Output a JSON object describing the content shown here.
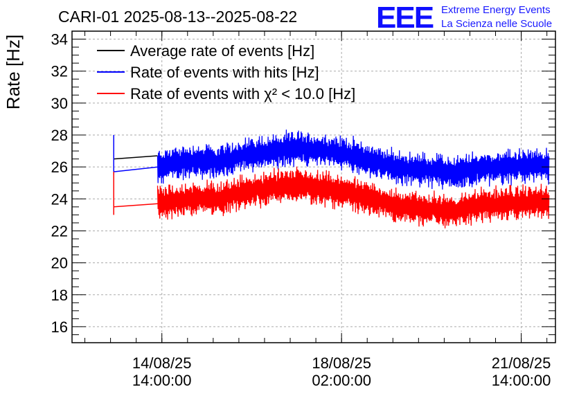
{
  "header": {
    "title": "CARI-01 2025-08-13--2025-08-22",
    "logo_text": "EEE",
    "logo_line1": "Extreme Energy Events",
    "logo_line2": "La Scienza nelle Scuole"
  },
  "chart_data": {
    "type": "line",
    "title": "CARI-01 2025-08-13--2025-08-22",
    "xlabel": "",
    "ylabel": "Rate [Hz]",
    "x_axis": "date",
    "xlim": [
      "2025-08-12T20:00:00",
      "2025-08-22T06:00:00"
    ],
    "ylim": [
      15,
      34.5
    ],
    "grid": true,
    "legend_position": "top-left",
    "x_ticks": [
      {
        "at": "2025-08-14T14:00:00",
        "date": "14/08/25",
        "time": "14:00:00"
      },
      {
        "at": "2025-08-18T02:00:00",
        "date": "18/08/25",
        "time": "02:00:00"
      },
      {
        "at": "2025-08-21T14:00:00",
        "date": "21/08/25",
        "time": "14:00:00"
      }
    ],
    "y_ticks": [
      16,
      18,
      20,
      22,
      24,
      26,
      28,
      30,
      32,
      34
    ],
    "series": [
      {
        "name": "Average rate of events [Hz]",
        "color": "#000000",
        "points": [
          [
            "2025-08-13T15:30:00",
            26.5
          ],
          [
            "2025-08-14T12:00:00",
            26.7
          ]
        ]
      },
      {
        "name": "Rate of events with hits [Hz]",
        "color": "#0000ff",
        "spike": [
          [
            "2025-08-13T15:30:00",
            25.5
          ],
          [
            "2025-08-13T15:30:00",
            28.0
          ]
        ],
        "points": [
          [
            "2025-08-13T15:30:00",
            25.7
          ],
          [
            "2025-08-14T12:00:00",
            26.0
          ],
          [
            "2025-08-14T18:00:00",
            26.2
          ],
          [
            "2025-08-15T06:00:00",
            26.4
          ],
          [
            "2025-08-15T18:00:00",
            26.3
          ],
          [
            "2025-08-16T06:00:00",
            26.8
          ],
          [
            "2025-08-16T18:00:00",
            27.0
          ],
          [
            "2025-08-17T06:00:00",
            27.2
          ],
          [
            "2025-08-17T18:00:00",
            27.0
          ],
          [
            "2025-08-18T06:00:00",
            26.8
          ],
          [
            "2025-08-18T18:00:00",
            26.3
          ],
          [
            "2025-08-19T06:00:00",
            25.9
          ],
          [
            "2025-08-19T18:00:00",
            25.8
          ],
          [
            "2025-08-20T06:00:00",
            25.6
          ],
          [
            "2025-08-20T18:00:00",
            25.9
          ],
          [
            "2025-08-21T06:00:00",
            26.0
          ],
          [
            "2025-08-21T18:00:00",
            26.1
          ],
          [
            "2025-08-22T03:00:00",
            26.0
          ]
        ]
      },
      {
        "name": "Rate of events with χ² < 10.0 [Hz]",
        "color": "#ff0000",
        "spike": [
          [
            "2025-08-13T15:30:00",
            23.0
          ],
          [
            "2025-08-13T15:30:00",
            25.7
          ]
        ],
        "points": [
          [
            "2025-08-13T15:30:00",
            23.5
          ],
          [
            "2025-08-14T12:00:00",
            23.7
          ],
          [
            "2025-08-14T18:00:00",
            23.8
          ],
          [
            "2025-08-15T06:00:00",
            24.1
          ],
          [
            "2025-08-15T18:00:00",
            24.0
          ],
          [
            "2025-08-16T06:00:00",
            24.5
          ],
          [
            "2025-08-16T18:00:00",
            24.7
          ],
          [
            "2025-08-17T06:00:00",
            24.9
          ],
          [
            "2025-08-17T18:00:00",
            24.6
          ],
          [
            "2025-08-18T06:00:00",
            24.4
          ],
          [
            "2025-08-18T18:00:00",
            23.9
          ],
          [
            "2025-08-19T06:00:00",
            23.5
          ],
          [
            "2025-08-19T18:00:00",
            23.4
          ],
          [
            "2025-08-20T06:00:00",
            23.2
          ],
          [
            "2025-08-20T18:00:00",
            23.6
          ],
          [
            "2025-08-21T06:00:00",
            23.7
          ],
          [
            "2025-08-21T18:00:00",
            23.8
          ],
          [
            "2025-08-22T03:00:00",
            23.7
          ]
        ]
      }
    ],
    "noise_band": {
      "start": "2025-08-14T12:00:00",
      "end": "2025-08-22T03:00:00",
      "half_width": 1.1
    }
  }
}
